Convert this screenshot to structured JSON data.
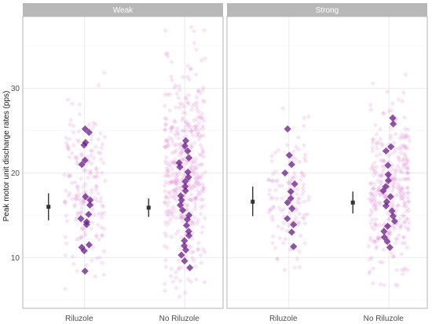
{
  "chart_data": {
    "type": "scatter",
    "subtype": "faceted jittered strip plot with mean and error bars",
    "ylabel": "Peak motor unit discharge rates (pps)",
    "xlabel": "",
    "ylim": [
      4,
      38.5
    ],
    "yticks": [
      10,
      20,
      30
    ],
    "grid": true,
    "colors": {
      "panel_border": "#b3b3b3",
      "strip_bg": "#b8b8b8",
      "light_points": "#e08ad0",
      "dark_points": "#6a1b8a",
      "summary": "#333333",
      "grid_major": "#ebebeb",
      "grid_minor": "#f5f5f5"
    },
    "facets": [
      {
        "label": "Weak",
        "categories": [
          "Riluzole",
          "No Riluzole"
        ],
        "summary": [
          {
            "category": "Riluzole",
            "mean": 16.0,
            "lower": 14.4,
            "upper": 17.6
          },
          {
            "category": "No Riluzole",
            "mean": 15.9,
            "lower": 14.8,
            "upper": 17.0
          }
        ],
        "highlighted": [
          {
            "category": "Riluzole",
            "y": [
              25.2,
              24.8,
              23.6,
              23.3,
              21.5,
              21.0,
              17.2,
              16.8,
              16.2,
              15.1,
              14.6,
              14.2,
              13.9,
              11.5,
              11.2,
              10.8,
              8.4
            ]
          },
          {
            "category": "No Riluzole",
            "y": [
              23.8,
              23.2,
              22.6,
              21.8,
              21.2,
              20.7,
              20.1,
              19.5,
              19.0,
              18.4,
              17.9,
              17.3,
              16.8,
              16.2,
              15.6,
              15.0,
              14.5,
              13.8,
              13.1,
              12.6,
              12.0,
              11.4,
              10.9,
              10.3,
              9.6,
              8.8
            ]
          }
        ],
        "background_range": [
          {
            "category": "Riluzole",
            "min": 6.0,
            "max": 32.8,
            "count": 180
          },
          {
            "category": "No Riluzole",
            "min": 5.2,
            "max": 37.5,
            "count": 420
          }
        ]
      },
      {
        "label": "Strong",
        "categories": [
          "Riluzole",
          "No Riluzole"
        ],
        "summary": [
          {
            "category": "Riluzole",
            "mean": 16.6,
            "lower": 14.9,
            "upper": 18.4
          },
          {
            "category": "No Riluzole",
            "mean": 16.5,
            "lower": 15.2,
            "upper": 17.8
          }
        ],
        "highlighted": [
          {
            "category": "Riluzole",
            "y": [
              25.2,
              22.1,
              21.0,
              20.0,
              18.7,
              17.8,
              17.0,
              16.5,
              15.8,
              14.6,
              13.9,
              13.0,
              11.3
            ]
          },
          {
            "category": "No Riluzole",
            "y": [
              26.5,
              25.8,
              23.1,
              22.6,
              20.9,
              19.8,
              19.1,
              18.4,
              17.9,
              17.2,
              16.6,
              16.1,
              15.5,
              14.9,
              14.3,
              13.7,
              13.1,
              12.4,
              11.9,
              11.2
            ]
          }
        ],
        "background_range": [
          {
            "category": "Riluzole",
            "min": 8.0,
            "max": 28.1,
            "count": 120
          },
          {
            "category": "No Riluzole",
            "min": 6.2,
            "max": 32.0,
            "count": 330
          }
        ]
      }
    ]
  }
}
